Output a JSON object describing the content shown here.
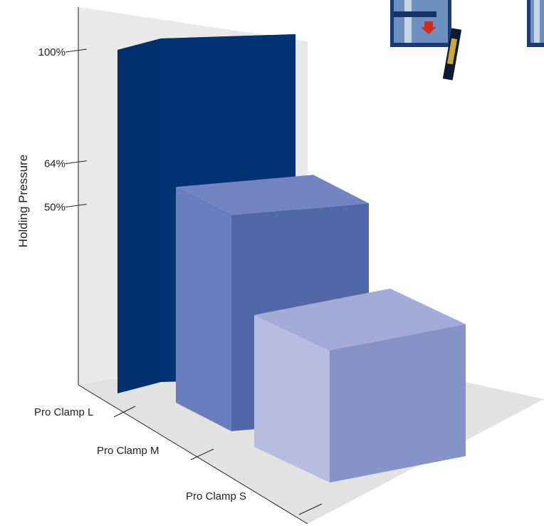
{
  "chart_data": {
    "type": "bar",
    "ylabel": "Holding Pressure",
    "categories": [
      "Pro Clamp L",
      "Pro Clamp M",
      "Pro Clamp S"
    ],
    "values": [
      100,
      64,
      35
    ],
    "yticks": [
      {
        "value": 50,
        "label": "50%"
      },
      {
        "value": 64,
        "label": "64%"
      },
      {
        "value": 100,
        "label": "100%"
      }
    ],
    "ylim": [
      0,
      100
    ],
    "colors": {
      "bar_L_front": "#02306e",
      "bar_L_side": "#013374",
      "bar_L_top": "#012a66",
      "bar_M_front": "#6a7dbd",
      "bar_M_side": "#5168a7",
      "bar_M_top": "#7384c2",
      "bar_S_front": "#b6bde0",
      "bar_S_side": "#8593c6",
      "bar_S_top": "#a3acd8",
      "wall": "#e9e9e9",
      "floor": "#e2e2e2"
    },
    "icons": [
      "clamp-photo-1",
      "clamp-photo-2"
    ]
  }
}
